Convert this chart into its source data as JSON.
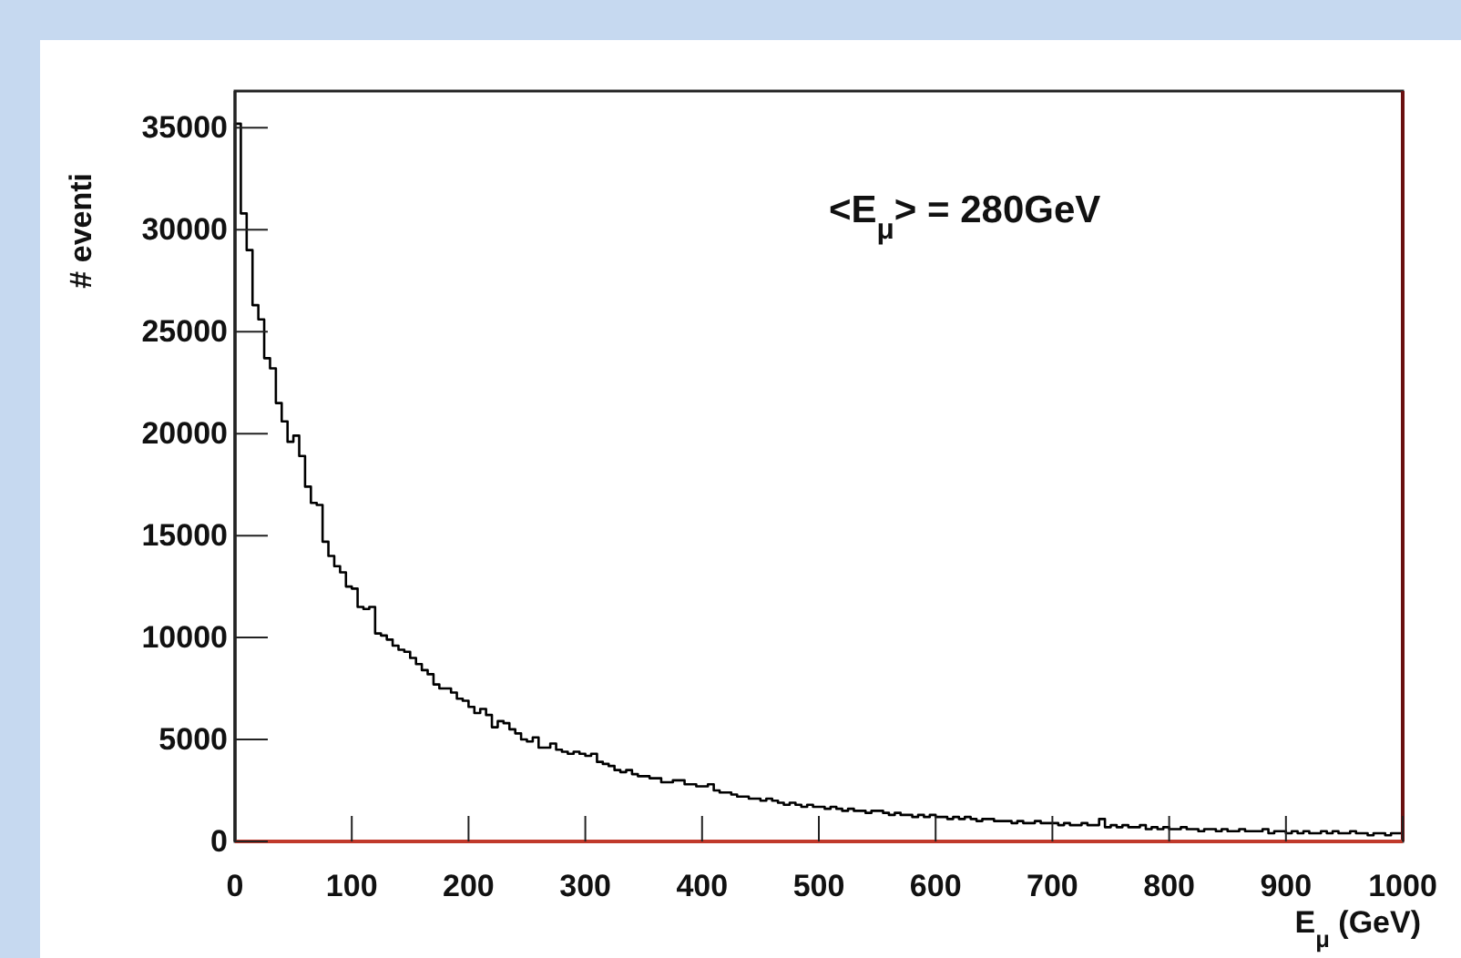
{
  "chart_data": {
    "type": "histogram",
    "xlabel": "E$_{μ}$ (GeV)",
    "ylabel": "# eventi",
    "annotations": [
      "<E$_{μ}$> =  280GeV"
    ],
    "color": "#000000",
    "bins": [
      0,
      5,
      10,
      15,
      20,
      25,
      30,
      35,
      40,
      45,
      50,
      55,
      60,
      65,
      70,
      75,
      80,
      85,
      90,
      95,
      100,
      105,
      110,
      115,
      120,
      125,
      130,
      135,
      140,
      145,
      150,
      155,
      160,
      165,
      170,
      175,
      180,
      185,
      190,
      195,
      200,
      205,
      210,
      215,
      220,
      225,
      230,
      235,
      240,
      245,
      250,
      255,
      260,
      265,
      270,
      275,
      280,
      285,
      290,
      295,
      300,
      305,
      310,
      315,
      320,
      325,
      330,
      335,
      340,
      345,
      350,
      355,
      360,
      365,
      370,
      375,
      380,
      385,
      390,
      395,
      400,
      405,
      410,
      415,
      420,
      425,
      430,
      435,
      440,
      445,
      450,
      455,
      460,
      465,
      470,
      475,
      480,
      485,
      490,
      495,
      500,
      505,
      510,
      515,
      520,
      525,
      530,
      535,
      540,
      545,
      550,
      555,
      560,
      565,
      570,
      575,
      580,
      585,
      590,
      595,
      600,
      605,
      610,
      615,
      620,
      625,
      630,
      635,
      640,
      645,
      650,
      655,
      660,
      665,
      670,
      675,
      680,
      685,
      690,
      695,
      700,
      705,
      710,
      715,
      720,
      725,
      730,
      735,
      740,
      745,
      750,
      755,
      760,
      765,
      770,
      775,
      780,
      785,
      790,
      795,
      800,
      805,
      810,
      815,
      820,
      825,
      830,
      835,
      840,
      845,
      850,
      855,
      860,
      865,
      870,
      875,
      880,
      885,
      890,
      895,
      900,
      905,
      910,
      915,
      920,
      925,
      930,
      935,
      940,
      945,
      950,
      955,
      960,
      965,
      970,
      975,
      980,
      985,
      990,
      995,
      1000
    ],
    "values": [
      35200,
      30800,
      29000,
      26300,
      25600,
      23700,
      23200,
      21500,
      20600,
      19600,
      19900,
      18900,
      17400,
      16600,
      16500,
      14700,
      14000,
      13500,
      13200,
      12500,
      12400,
      11500,
      11400,
      11500,
      10200,
      10100,
      9900,
      9600,
      9400,
      9300,
      9000,
      8700,
      8400,
      8200,
      7700,
      7500,
      7500,
      7300,
      7000,
      6900,
      6600,
      6300,
      6500,
      6200,
      5600,
      5900,
      5800,
      5500,
      5300,
      5000,
      4900,
      5100,
      4600,
      4600,
      4800,
      4500,
      4400,
      4300,
      4400,
      4300,
      4200,
      4300,
      3900,
      3800,
      3700,
      3500,
      3400,
      3500,
      3300,
      3200,
      3200,
      3100,
      3100,
      2900,
      2900,
      3000,
      3000,
      2800,
      2800,
      2700,
      2700,
      2800,
      2500,
      2400,
      2400,
      2300,
      2200,
      2200,
      2100,
      2100,
      2000,
      2100,
      2000,
      1900,
      1800,
      1900,
      1800,
      1700,
      1800,
      1700,
      1700,
      1600,
      1700,
      1600,
      1500,
      1600,
      1500,
      1500,
      1400,
      1500,
      1500,
      1400,
      1300,
      1400,
      1300,
      1300,
      1200,
      1300,
      1200,
      1300,
      1200,
      1200,
      1100,
      1200,
      1100,
      1200,
      1100,
      1000,
      1100,
      1100,
      1000,
      1000,
      1000,
      900,
      1000,
      900,
      900,
      1000,
      900,
      900,
      900,
      800,
      900,
      800,
      800,
      900,
      800,
      800,
      1100,
      700,
      800,
      700,
      800,
      700,
      700,
      800,
      600,
      700,
      600,
      700,
      600,
      600,
      700,
      600,
      600,
      500,
      600,
      600,
      500,
      600,
      500,
      500,
      600,
      500,
      500,
      500,
      600,
      400,
      500,
      500,
      400,
      500,
      400,
      500,
      400,
      400,
      500,
      400,
      500,
      400,
      400,
      500,
      400,
      400,
      300,
      400,
      400,
      300,
      400,
      400
    ],
    "xlim": [
      0,
      1000
    ],
    "xticks": [
      0,
      100,
      200,
      300,
      400,
      500,
      600,
      700,
      800,
      900,
      1000
    ],
    "ylim": [
      0,
      36800
    ],
    "yticks": [
      0,
      5000,
      10000,
      15000,
      20000,
      25000,
      30000,
      35000
    ],
    "grid": false
  }
}
